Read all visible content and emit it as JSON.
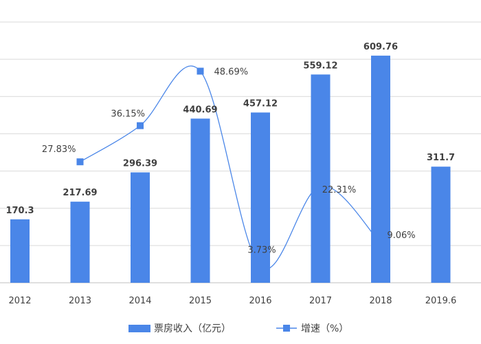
{
  "chart_data": {
    "type": "bar",
    "categories": [
      "2012",
      "2013",
      "2014",
      "2015",
      "2016",
      "2017",
      "2018",
      "2019.6"
    ],
    "series": [
      {
        "name": "票房收入（亿元）",
        "type": "bar",
        "color": "#4a86e8",
        "values": [
          170.3,
          217.69,
          296.39,
          440.69,
          457.12,
          559.12,
          609.76,
          311.7
        ],
        "labels": [
          "170.3",
          "217.69",
          "296.39",
          "440.69",
          "457.12",
          "559.12",
          "609.76",
          "311.7"
        ]
      },
      {
        "name": "增速（%）",
        "type": "line",
        "smooth": true,
        "color": "#4a86e8",
        "values": [
          null,
          27.83,
          36.15,
          48.69,
          3.73,
          22.31,
          9.06,
          null
        ],
        "labels": [
          "",
          "27.83%",
          "36.15%",
          "48.69%",
          "3.73%",
          "22.31%",
          "9.06%",
          ""
        ]
      }
    ],
    "ylim": [
      0,
      700
    ],
    "y2lim": [
      0,
      60
    ],
    "grid": true,
    "legend": "bottom-center"
  }
}
